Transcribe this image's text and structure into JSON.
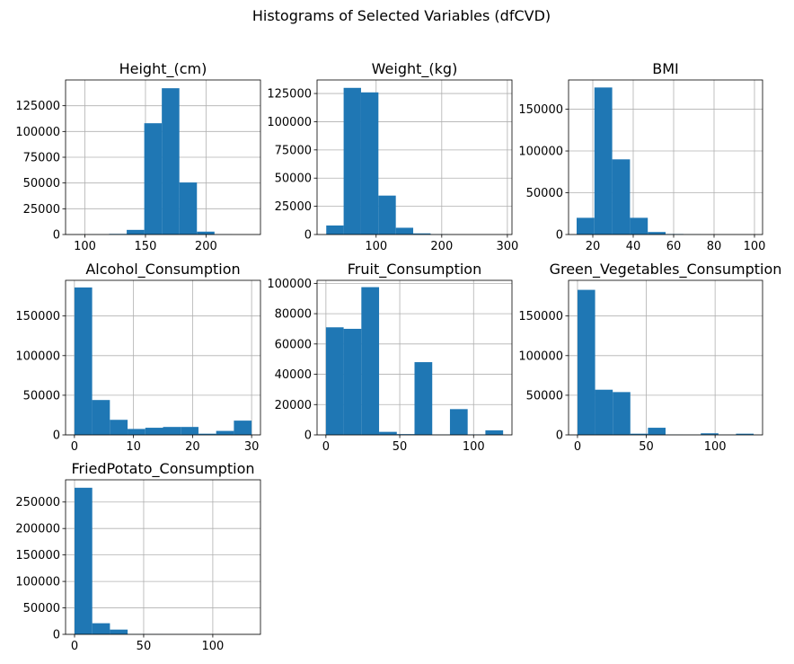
{
  "figure": {
    "title": "Histograms of Selected Variables (dfCVD)",
    "bar_color": "#1f77b4",
    "grid": true
  },
  "chart_data": [
    {
      "type": "bar",
      "title": "Height_(cm)",
      "xlim": [
        84,
        245
      ],
      "ylim": [
        0,
        150000
      ],
      "xticks": [
        100,
        150,
        200
      ],
      "yticks": [
        0,
        25000,
        50000,
        75000,
        100000,
        125000
      ],
      "bin_edges": [
        91,
        105.5,
        120,
        134.5,
        149,
        163.5,
        178,
        192.5,
        207,
        221.5,
        236
      ],
      "counts": [
        60,
        80,
        600,
        4500,
        108000,
        142000,
        50500,
        2800,
        150,
        20
      ]
    },
    {
      "type": "bar",
      "title": "Weight_(kg)",
      "xlim": [
        10,
        307
      ],
      "ylim": [
        0,
        137000
      ],
      "xticks": [
        100,
        200,
        300
      ],
      "yticks": [
        0,
        25000,
        50000,
        75000,
        100000,
        125000
      ],
      "bin_edges": [
        24,
        50.5,
        77,
        103.5,
        130,
        156.5,
        183,
        209.5,
        236,
        262.5,
        289
      ],
      "counts": [
        8000,
        130000,
        126000,
        34500,
        6000,
        1000,
        200,
        40,
        10,
        5
      ]
    },
    {
      "type": "bar",
      "title": "BMI",
      "xlim": [
        8,
        104
      ],
      "ylim": [
        0,
        185000
      ],
      "xticks": [
        20,
        40,
        60,
        80,
        100
      ],
      "yticks": [
        0,
        50000,
        100000,
        150000
      ],
      "bin_edges": [
        12,
        20.8,
        29.6,
        38.4,
        47.2,
        56,
        64.8,
        73.6,
        82.4,
        91.2,
        100
      ],
      "counts": [
        20000,
        176000,
        90000,
        20000,
        3000,
        600,
        150,
        50,
        20,
        10
      ]
    },
    {
      "type": "bar",
      "title": "Alcohol_Consumption",
      "xlim": [
        -1.5,
        31.5
      ],
      "ylim": [
        0,
        195000
      ],
      "xticks": [
        0,
        10,
        20,
        30
      ],
      "yticks": [
        0,
        50000,
        100000,
        150000
      ],
      "bin_edges": [
        0,
        3,
        6,
        9,
        12,
        15,
        18,
        21,
        24,
        27,
        30
      ],
      "counts": [
        186000,
        44000,
        19000,
        7500,
        9000,
        10000,
        10000,
        1500,
        5000,
        18000
      ]
    },
    {
      "type": "bar",
      "title": "Fruit_Consumption",
      "xlim": [
        -6,
        126
      ],
      "ylim": [
        0,
        102000
      ],
      "xticks": [
        0,
        50,
        100
      ],
      "yticks": [
        0,
        20000,
        40000,
        60000,
        80000,
        100000
      ],
      "bin_edges": [
        0,
        12,
        24,
        36,
        48,
        60,
        72,
        84,
        96,
        108,
        120
      ],
      "counts": [
        71000,
        70000,
        97500,
        2000,
        500,
        48000,
        200,
        17000,
        300,
        3000
      ]
    },
    {
      "type": "bar",
      "title": "Green_Vegetables_Consumption",
      "xlim": [
        -6.5,
        134.5
      ],
      "ylim": [
        0,
        195000
      ],
      "xticks": [
        0,
        50,
        100
      ],
      "yticks": [
        0,
        50000,
        100000,
        150000
      ],
      "bin_edges": [
        0,
        12.8,
        25.6,
        38.4,
        51.2,
        64,
        76.8,
        89.6,
        102.4,
        115.2,
        128
      ],
      "counts": [
        183000,
        57000,
        54000,
        1500,
        9000,
        300,
        200,
        2000,
        200,
        1500
      ]
    },
    {
      "type": "bar",
      "title": "FriedPotato_Consumption",
      "xlim": [
        -6.5,
        134.5
      ],
      "ylim": [
        0,
        292000
      ],
      "xticks": [
        0,
        50,
        100
      ],
      "yticks": [
        0,
        50000,
        100000,
        150000,
        200000,
        250000
      ],
      "bin_edges": [
        0,
        12.8,
        25.6,
        38.4,
        51.2,
        64,
        76.8,
        89.6,
        102.4,
        115.2,
        128
      ],
      "counts": [
        277000,
        21000,
        9000,
        400,
        200,
        100,
        50,
        30,
        20,
        10
      ]
    }
  ]
}
